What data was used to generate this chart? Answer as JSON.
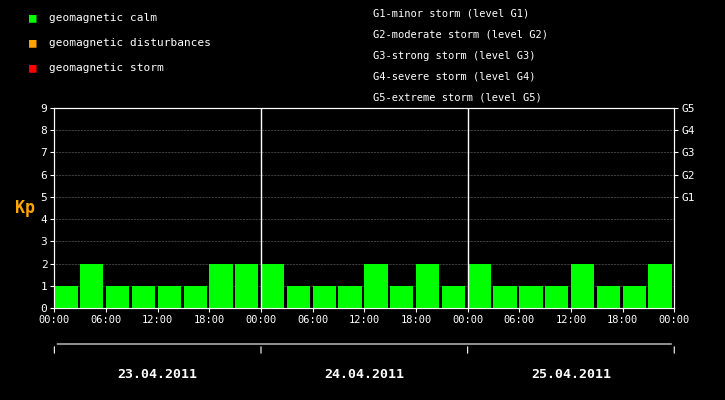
{
  "background_color": "#000000",
  "plot_bg_color": "#000000",
  "bar_color": "#00ff00",
  "text_color": "#ffffff",
  "orange_color": "#ffa500",
  "days": [
    "23.04.2011",
    "24.04.2011",
    "25.04.2011"
  ],
  "kp_values": [
    1,
    2,
    1,
    1,
    1,
    1,
    2,
    2,
    2,
    1,
    1,
    1,
    2,
    1,
    2,
    1,
    2,
    1,
    1,
    1,
    2,
    1,
    1,
    2
  ],
  "ylim": [
    0,
    9
  ],
  "yticks": [
    0,
    1,
    2,
    3,
    4,
    5,
    6,
    7,
    8,
    9
  ],
  "ylabel": "Kp",
  "legend_items": [
    {
      "label": "geomagnetic calm",
      "color": "#00ff00"
    },
    {
      "label": "geomagnetic disturbances",
      "color": "#ffa500"
    },
    {
      "label": "geomagnetic storm",
      "color": "#ff0000"
    }
  ],
  "right_legend_lines": [
    "G1-minor storm (level G1)",
    "G2-moderate storm (level G2)",
    "G3-strong storm (level G3)",
    "G4-severe storm (level G4)",
    "G5-extreme storm (level G5)"
  ],
  "right_y_ticks": [
    5,
    6,
    7,
    8,
    9
  ],
  "right_y_labels": [
    "G1",
    "G2",
    "G3",
    "G4",
    "G5"
  ],
  "time_tick_labels": [
    "00:00",
    "06:00",
    "12:00",
    "18:00",
    "00:00"
  ],
  "bar_width": 0.9,
  "n_per_day": 8
}
